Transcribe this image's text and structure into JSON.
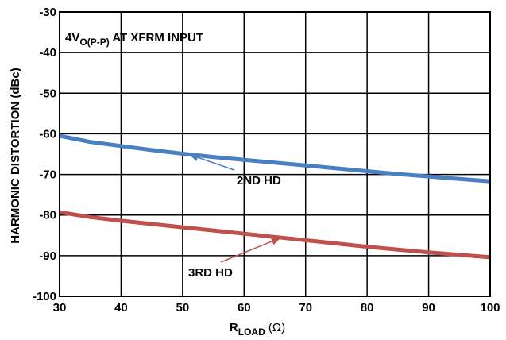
{
  "chart_data": {
    "type": "line",
    "title": "",
    "annotation_main": "4V",
    "annotation_sub": "O(P-P)",
    "annotation_rest": " AT XFRM INPUT",
    "xlabel_main": "R",
    "xlabel_sub": "LOAD",
    "xlabel_unit": " (Ω)",
    "ylabel": "HARMONIC DISTORTION (dBc)",
    "xlim": [
      30,
      100
    ],
    "ylim": [
      -100,
      -30
    ],
    "x_ticks": [
      "30",
      "40",
      "50",
      "60",
      "70",
      "80",
      "90",
      "100"
    ],
    "y_ticks": [
      "-30",
      "-40",
      "-50",
      "-60",
      "-70",
      "-80",
      "-90",
      "-100"
    ],
    "grid": true,
    "series": [
      {
        "name": "2ND HD",
        "color": "#4a7fc1",
        "x": [
          30,
          35,
          40,
          45,
          50,
          55,
          60,
          65,
          70,
          75,
          80,
          85,
          90,
          95,
          100
        ],
        "y": [
          -60.5,
          -62.0,
          -63.0,
          -64.0,
          -64.9,
          -65.7,
          -66.4,
          -67.1,
          -67.8,
          -68.5,
          -69.2,
          -69.9,
          -70.5,
          -71.1,
          -71.7
        ]
      },
      {
        "name": "3RD HD",
        "color": "#c0504d",
        "x": [
          30,
          35,
          40,
          45,
          50,
          55,
          60,
          65,
          70,
          75,
          80,
          85,
          90,
          95,
          100
        ],
        "y": [
          -79.3,
          -80.5,
          -81.4,
          -82.2,
          -83.0,
          -83.8,
          -84.6,
          -85.4,
          -86.2,
          -87.0,
          -87.8,
          -88.5,
          -89.2,
          -89.8,
          -90.4
        ]
      }
    ],
    "labels": [
      {
        "text": "2ND HD",
        "series": 0
      },
      {
        "text": "3RD HD",
        "series": 1
      }
    ]
  }
}
